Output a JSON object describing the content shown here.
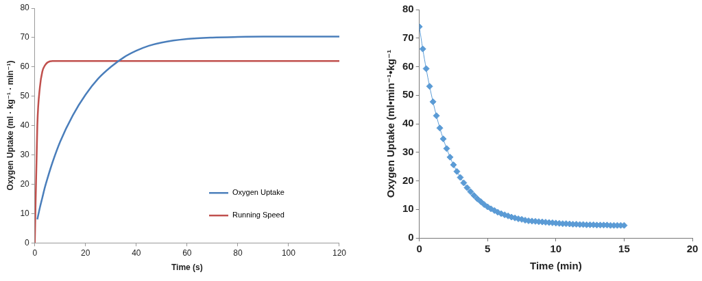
{
  "chart_data": [
    {
      "type": "line",
      "x_label": "Time (s)",
      "y_label": "Oxygen Uptake (ml · kg⁻¹ · min⁻¹)",
      "x": [
        0,
        1,
        2,
        3,
        4,
        5,
        7,
        10,
        15,
        20,
        25,
        30,
        35,
        40,
        45,
        50,
        60,
        70,
        80,
        90,
        100,
        110,
        120
      ],
      "series": [
        {
          "name": "Oxygen Uptake",
          "color": "#4a7ebb",
          "values": [
            null,
            8,
            12,
            15.5,
            19,
            22,
            27.5,
            34.5,
            43.5,
            50.5,
            56,
            60,
            63.2,
            65.5,
            67.2,
            68.3,
            69.5,
            70,
            70.2,
            70.3,
            70.3,
            70.3,
            70.3
          ]
        },
        {
          "name": "Running Speed",
          "color": "#c0504d",
          "values": [
            0,
            40,
            53,
            58.5,
            60.5,
            61.5,
            62,
            62,
            62,
            62,
            62,
            62,
            62,
            62,
            62,
            62,
            62,
            62,
            62,
            62,
            62,
            62,
            62
          ]
        }
      ],
      "xlim": [
        0,
        120
      ],
      "xticks": [
        0,
        20,
        40,
        60,
        80,
        100,
        120
      ],
      "ylim": [
        0,
        80
      ],
      "yticks": [
        0,
        10,
        20,
        30,
        40,
        50,
        60,
        70,
        80
      ],
      "grid": false,
      "legend": "lower right"
    },
    {
      "type": "scatter",
      "x_label": "Time (min)",
      "y_label": "Oxygen Uptake (ml•min⁻¹•kg⁻¹",
      "x": [
        0,
        0.25,
        0.5,
        0.75,
        1,
        1.25,
        1.5,
        1.75,
        2,
        2.25,
        2.5,
        2.75,
        3,
        3.25,
        3.5,
        3.75,
        4,
        4.25,
        4.5,
        4.75,
        5,
        5.25,
        5.5,
        5.75,
        6,
        6.25,
        6.5,
        6.75,
        7,
        7.25,
        7.5,
        7.75,
        8,
        8.25,
        8.5,
        8.75,
        9,
        9.25,
        9.5,
        9.75,
        10,
        10.25,
        10.5,
        10.75,
        11,
        11.25,
        11.5,
        11.75,
        12,
        12.25,
        12.5,
        12.75,
        13,
        13.25,
        13.5,
        13.75,
        14,
        14.25,
        14.5,
        14.75,
        15
      ],
      "values": [
        74,
        66.2,
        59.3,
        53.1,
        47.7,
        42.8,
        38.5,
        34.7,
        31.3,
        28.3,
        25.6,
        23.3,
        21.2,
        19.3,
        17.6,
        16.2,
        14.9,
        13.7,
        12.7,
        11.7,
        10.9,
        10.2,
        9.6,
        9.0,
        8.5,
        8.1,
        7.7,
        7.3,
        7.0,
        6.7,
        6.5,
        6.2,
        6.0,
        5.9,
        5.8,
        5.7,
        5.6,
        5.5,
        5.4,
        5.3,
        5.2,
        5.1,
        5.0,
        5.0,
        4.9,
        4.8,
        4.8,
        4.7,
        4.7,
        4.6,
        4.6,
        4.6,
        4.5,
        4.5,
        4.5,
        4.5,
        4.4,
        4.4,
        4.4,
        4.4,
        4.4
      ],
      "color": "#5b9bd5",
      "marker": "diamond",
      "line_style": "solid",
      "xlim": [
        0,
        20
      ],
      "xticks": [
        0,
        5,
        10,
        15,
        20
      ],
      "ylim": [
        0,
        80
      ],
      "yticks": [
        0,
        10,
        20,
        30,
        40,
        50,
        60,
        70,
        80
      ],
      "grid": false
    }
  ]
}
